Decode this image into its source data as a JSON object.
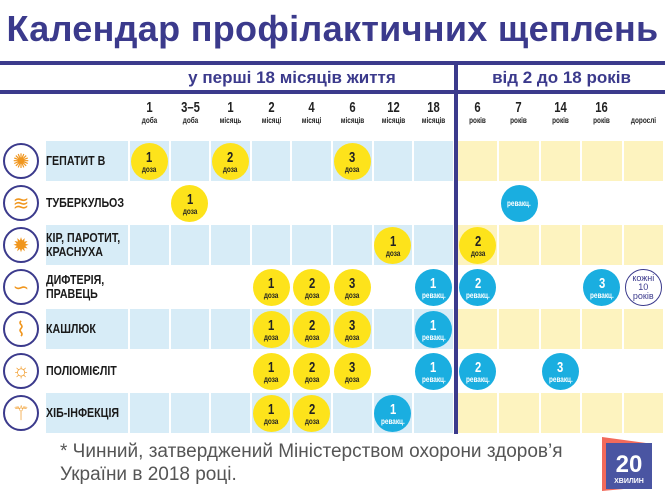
{
  "title": "Календар профілактичних щеплень",
  "sections": {
    "infant": "у перші 18 місяців життя",
    "child": "від 2 до 18 років"
  },
  "columns": [
    {
      "n": "1",
      "u": "доба"
    },
    {
      "n": "3–5",
      "u": "доба"
    },
    {
      "n": "1",
      "u": "місяць"
    },
    {
      "n": "2",
      "u": "місяці"
    },
    {
      "n": "4",
      "u": "місяці"
    },
    {
      "n": "6",
      "u": "місяців"
    },
    {
      "n": "12",
      "u": "місяців"
    },
    {
      "n": "18",
      "u": "місяців"
    },
    {
      "n": "6",
      "u": "років"
    },
    {
      "n": "7",
      "u": "років"
    },
    {
      "n": "14",
      "u": "років"
    },
    {
      "n": "16",
      "u": "років"
    },
    {
      "n": "",
      "u": "дорослі"
    }
  ],
  "rows": [
    {
      "label": "ГЕПАТИТ В",
      "icon": "virus-icon",
      "cells": [
        {
          "col": 0,
          "n": "1",
          "u": "доза",
          "type": "dose"
        },
        {
          "col": 2,
          "n": "2",
          "u": "доза",
          "type": "dose"
        },
        {
          "col": 5,
          "n": "3",
          "u": "доза",
          "type": "dose"
        }
      ]
    },
    {
      "label": "ТУБЕРКУЛЬОЗ",
      "icon": "bacteria-icon",
      "cells": [
        {
          "col": 1,
          "n": "1",
          "u": "доза",
          "type": "dose"
        },
        {
          "col": 9,
          "n": "",
          "u": "ревакц.",
          "type": "revac"
        }
      ]
    },
    {
      "label": "КІР, ПАРОТИТ, КРАСНУХА",
      "icon": "virus-spiral-icon",
      "cells": [
        {
          "col": 6,
          "n": "1",
          "u": "доза",
          "type": "dose"
        },
        {
          "col": 8,
          "n": "2",
          "u": "доза",
          "type": "dose"
        }
      ]
    },
    {
      "label": "ДИФТЕРІЯ, ПРАВЕЦЬ",
      "icon": "bacilli-icon",
      "cells": [
        {
          "col": 3,
          "n": "1",
          "u": "доза",
          "type": "dose"
        },
        {
          "col": 4,
          "n": "2",
          "u": "доза",
          "type": "dose"
        },
        {
          "col": 5,
          "n": "3",
          "u": "доза",
          "type": "dose"
        },
        {
          "col": 7,
          "n": "1",
          "u": "ревакц.",
          "type": "revac"
        },
        {
          "col": 8,
          "n": "2",
          "u": "ревакц.",
          "type": "revac"
        },
        {
          "col": 11,
          "n": "3",
          "u": "ревакц.",
          "type": "revac"
        },
        {
          "col": 12,
          "n": "",
          "u": "кожні 10 років",
          "type": "note"
        }
      ]
    },
    {
      "label": "КАШЛЮК",
      "icon": "rod-bacteria-icon",
      "cells": [
        {
          "col": 3,
          "n": "1",
          "u": "доза",
          "type": "dose"
        },
        {
          "col": 4,
          "n": "2",
          "u": "доза",
          "type": "dose"
        },
        {
          "col": 5,
          "n": "3",
          "u": "доза",
          "type": "dose"
        },
        {
          "col": 7,
          "n": "1",
          "u": "ревакц.",
          "type": "revac"
        }
      ]
    },
    {
      "label": "ПОЛІОМІЄЛІТ",
      "icon": "sun-virus-icon",
      "cells": [
        {
          "col": 3,
          "n": "1",
          "u": "доза",
          "type": "dose"
        },
        {
          "col": 4,
          "n": "2",
          "u": "доза",
          "type": "dose"
        },
        {
          "col": 5,
          "n": "3",
          "u": "доза",
          "type": "dose"
        },
        {
          "col": 7,
          "n": "1",
          "u": "ревакц.",
          "type": "revac"
        },
        {
          "col": 8,
          "n": "2",
          "u": "ревакц.",
          "type": "revac"
        },
        {
          "col": 10,
          "n": "3",
          "u": "ревакц.",
          "type": "revac"
        }
      ]
    },
    {
      "label": "ХІБ-ІНФЕКЦІЯ",
      "icon": "flagellate-icon",
      "cells": [
        {
          "col": 3,
          "n": "1",
          "u": "доза",
          "type": "dose"
        },
        {
          "col": 4,
          "n": "2",
          "u": "доза",
          "type": "dose"
        },
        {
          "col": 6,
          "n": "1",
          "u": "ревакц.",
          "type": "revac"
        }
      ]
    }
  ],
  "footnote": "* Чинний, затверджений Міністерством охорони здоров’я України в 2018 році.",
  "logo": {
    "number": "20",
    "word": "ХВИЛИН"
  },
  "colors": {
    "brand": "#3b3a8c",
    "dose": "#fde31b",
    "revac": "#1aaee0",
    "stripe_infant": "#d7ecf7",
    "stripe_child": "#fdf3bf",
    "icon": "#f0961e"
  }
}
